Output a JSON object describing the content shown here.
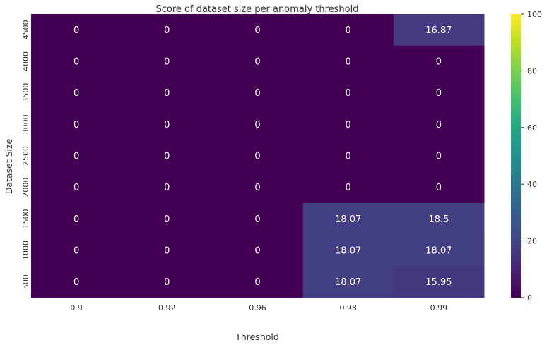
{
  "chart_data": {
    "type": "heatmap",
    "title": "Score of dataset size per anomaly threshold",
    "xlabel": "Threshold",
    "ylabel": "Dataset Size",
    "x_categories": [
      "0.9",
      "0.92",
      "0.96",
      "0.98",
      "0.99"
    ],
    "y_categories": [
      "4500",
      "4000",
      "3500",
      "3000",
      "2500",
      "2000",
      "1500",
      "1000",
      "500"
    ],
    "values": [
      [
        0,
        0,
        0,
        0,
        16.87
      ],
      [
        0,
        0,
        0,
        0,
        0
      ],
      [
        0,
        0,
        0,
        0,
        0
      ],
      [
        0,
        0,
        0,
        0,
        0
      ],
      [
        0,
        0,
        0,
        0,
        0
      ],
      [
        0,
        0,
        0,
        0,
        0
      ],
      [
        0,
        0,
        0,
        18.07,
        18.5
      ],
      [
        0,
        0,
        0,
        18.07,
        18.07
      ],
      [
        0,
        0,
        0,
        18.07,
        15.95
      ]
    ],
    "annotations": [
      [
        "0",
        "0",
        "0",
        "0",
        "16.87"
      ],
      [
        "0",
        "0",
        "0",
        "0",
        "0"
      ],
      [
        "0",
        "0",
        "0",
        "0",
        "0"
      ],
      [
        "0",
        "0",
        "0",
        "0",
        "0"
      ],
      [
        "0",
        "0",
        "0",
        "0",
        "0"
      ],
      [
        "0",
        "0",
        "0",
        "0",
        "0"
      ],
      [
        "0",
        "0",
        "0",
        "18.07",
        "18.5"
      ],
      [
        "0",
        "0",
        "0",
        "18.07",
        "18.07"
      ],
      [
        "0",
        "0",
        "0",
        "18.07",
        "15.95"
      ]
    ],
    "colorbar": {
      "colormap": "viridis",
      "vmin": 0,
      "vmax": 100,
      "ticks": [
        "0",
        "20",
        "40",
        "60",
        "80",
        "100"
      ]
    },
    "colors": {
      "low": "#440154",
      "high": "#fde725",
      "annotation_text": "#ffffff",
      "axis_text": "#333333"
    }
  }
}
